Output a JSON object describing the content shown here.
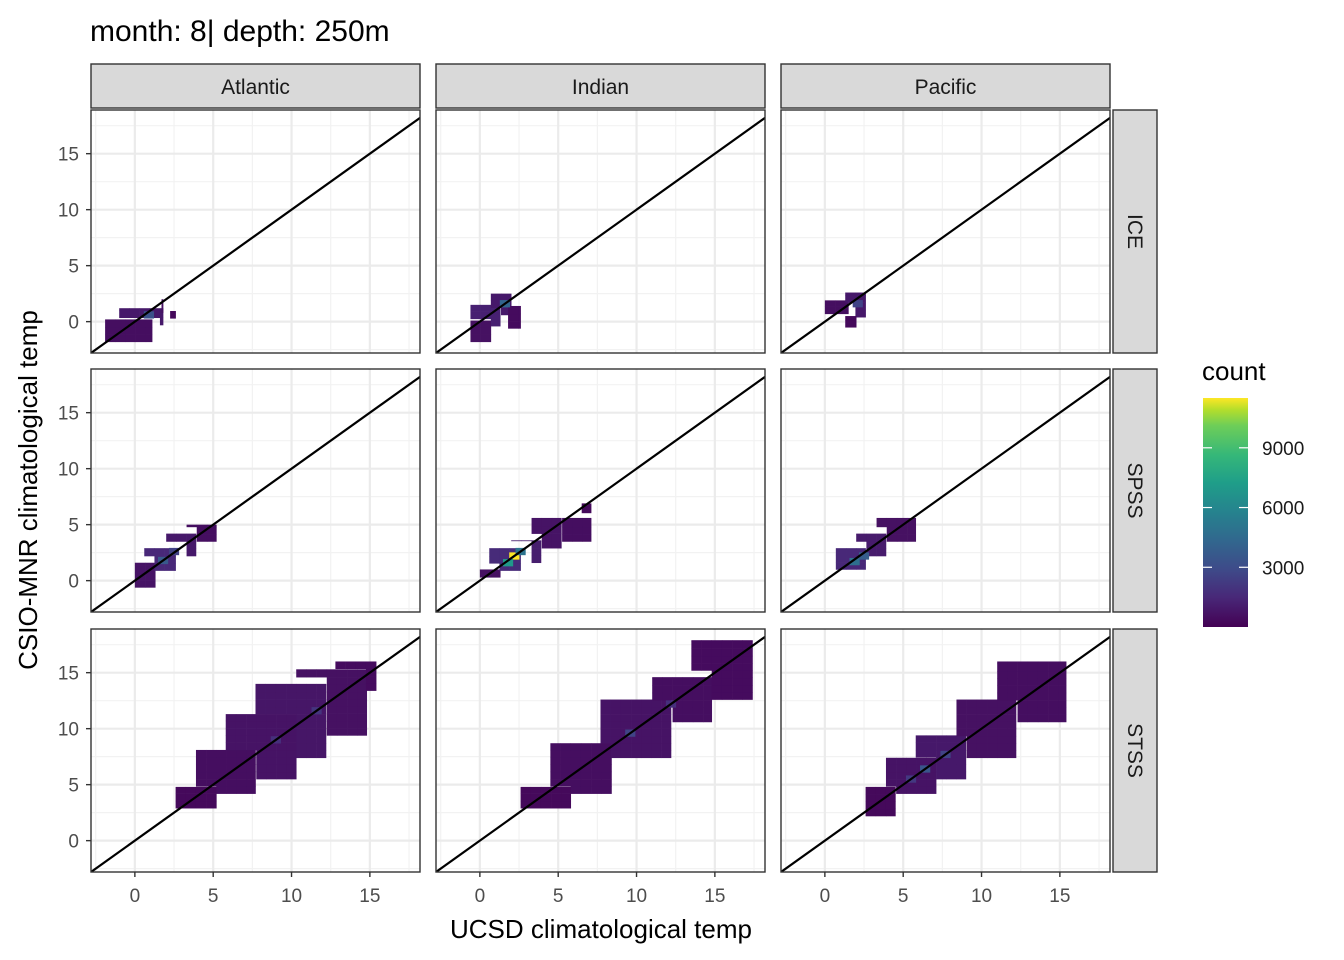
{
  "chart_data": {
    "type": "heatmap",
    "title": "month: 8| depth: 250m",
    "xlabel": "UCSD climatological temp",
    "ylabel": "CSIO-MNR climatological temp",
    "xlim": [
      -2.8,
      18.2
    ],
    "ylim": [
      -2.8,
      18.9
    ],
    "x_ticks": [
      0,
      5,
      10,
      15
    ],
    "y_ticks": [
      0,
      5,
      10,
      15
    ],
    "tick_labels_x": [
      "0",
      "5",
      "10",
      "15"
    ],
    "tick_labels_y": [
      "0",
      "5",
      "10",
      "15"
    ],
    "grid": true,
    "reference_line": "y = x",
    "columns": [
      "Atlantic",
      "Indian",
      "Pacific"
    ],
    "rows": [
      "ICE",
      "SPSS",
      "STSS"
    ],
    "bin_width": 0.65,
    "legend": {
      "title": "count",
      "placement": "right",
      "colormap": "viridis",
      "min": 1,
      "max": 11500,
      "ticks": [
        3000,
        6000,
        9000
      ],
      "tick_labels": [
        "3000",
        "6000",
        "9000"
      ],
      "low_color": "#440154",
      "high_color": "#fde725"
    },
    "panels": [
      {
        "column": "Atlantic",
        "row": "ICE",
        "regions": [
          {
            "x": [
              -1.9,
              1.1
            ],
            "y": [
              -1.8,
              0.2
            ],
            "count": 500
          },
          {
            "x": [
              -1.0,
              1.8
            ],
            "y": [
              -0.3,
              1.2
            ],
            "count": 900
          },
          {
            "x": [
              0.4,
              1.8
            ],
            "y": [
              0.8,
              2.0
            ],
            "count": 600
          },
          {
            "x": [
              1.6,
              2.6
            ],
            "y": [
              0.3,
              1.0
            ],
            "count": 300
          }
        ],
        "hotspots": [
          {
            "x": 0.9,
            "y": 0.6,
            "count": 3200
          }
        ]
      },
      {
        "column": "Indian",
        "row": "ICE",
        "regions": [
          {
            "x": [
              -0.6,
              0.7
            ],
            "y": [
              -1.8,
              0.1
            ],
            "count": 600
          },
          {
            "x": [
              -0.6,
              1.3
            ],
            "y": [
              -0.4,
              1.5
            ],
            "count": 1200
          },
          {
            "x": [
              0.7,
              2.0
            ],
            "y": [
              0.6,
              2.5
            ],
            "count": 900
          },
          {
            "x": [
              1.8,
              2.6
            ],
            "y": [
              -0.6,
              1.4
            ],
            "count": 400
          }
        ],
        "hotspots": [
          {
            "x": 1.6,
            "y": 1.6,
            "count": 4200
          }
        ]
      },
      {
        "column": "Pacific",
        "row": "ICE",
        "regions": [
          {
            "x": [
              0.0,
              1.5
            ],
            "y": [
              0.7,
              1.9
            ],
            "count": 500
          },
          {
            "x": [
              1.3,
              2.6
            ],
            "y": [
              0.4,
              2.6
            ],
            "count": 900
          },
          {
            "x": [
              1.3,
              2.0
            ],
            "y": [
              -0.5,
              0.5
            ],
            "count": 300
          }
        ],
        "hotspots": [
          {
            "x": 2.1,
            "y": 1.6,
            "count": 2600
          }
        ]
      },
      {
        "column": "Atlantic",
        "row": "SPSS",
        "regions": [
          {
            "x": [
              0.0,
              1.3
            ],
            "y": [
              -0.6,
              1.6
            ],
            "count": 700
          },
          {
            "x": [
              0.6,
              2.6
            ],
            "y": [
              0.9,
              2.9
            ],
            "count": 1500
          },
          {
            "x": [
              2.0,
              3.9
            ],
            "y": [
              2.2,
              4.2
            ],
            "count": 900
          },
          {
            "x": [
              3.3,
              5.2
            ],
            "y": [
              3.5,
              5.0
            ],
            "count": 500
          }
        ],
        "hotspots": [
          {
            "x": 1.8,
            "y": 1.8,
            "count": 3600
          },
          {
            "x": 2.5,
            "y": 2.6,
            "count": 2500
          }
        ]
      },
      {
        "column": "Indian",
        "row": "SPSS",
        "regions": [
          {
            "x": [
              0.0,
              1.3
            ],
            "y": [
              0.3,
              1.0
            ],
            "count": 600
          },
          {
            "x": [
              0.6,
              2.6
            ],
            "y": [
              0.9,
              2.9
            ],
            "count": 1600
          },
          {
            "x": [
              2.0,
              3.9
            ],
            "y": [
              1.6,
              3.6
            ],
            "count": 1100
          },
          {
            "x": [
              3.3,
              5.2
            ],
            "y": [
              2.9,
              5.6
            ],
            "count": 700
          },
          {
            "x": [
              4.6,
              7.1
            ],
            "y": [
              3.5,
              5.6
            ],
            "count": 500
          },
          {
            "x": [
              6.5,
              7.1
            ],
            "y": [
              5.4,
              6.9
            ],
            "count": 300
          }
        ],
        "hotspots": [
          {
            "x": 2.2,
            "y": 2.2,
            "count": 11500
          },
          {
            "x": 1.8,
            "y": 1.6,
            "count": 7000
          },
          {
            "x": 2.6,
            "y": 2.6,
            "count": 5000
          }
        ]
      },
      {
        "column": "Pacific",
        "row": "SPSS",
        "regions": [
          {
            "x": [
              0.7,
              2.6
            ],
            "y": [
              1.0,
              2.9
            ],
            "count": 1500
          },
          {
            "x": [
              2.0,
              3.9
            ],
            "y": [
              2.2,
              4.2
            ],
            "count": 1000
          },
          {
            "x": [
              3.3,
              5.8
            ],
            "y": [
              3.5,
              5.6
            ],
            "count": 600
          }
        ],
        "hotspots": [
          {
            "x": 1.9,
            "y": 1.7,
            "count": 4800
          },
          {
            "x": 2.5,
            "y": 2.2,
            "count": 3800
          }
        ]
      },
      {
        "column": "Atlantic",
        "row": "STSS",
        "regions": [
          {
            "x": [
              2.6,
              5.2
            ],
            "y": [
              2.9,
              4.8
            ],
            "count": 300
          },
          {
            "x": [
              3.9,
              7.7
            ],
            "y": [
              4.2,
              8.1
            ],
            "count": 500
          },
          {
            "x": [
              5.8,
              10.3
            ],
            "y": [
              5.5,
              11.3
            ],
            "count": 700
          },
          {
            "x": [
              7.7,
              12.2
            ],
            "y": [
              7.4,
              14.0
            ],
            "count": 800
          },
          {
            "x": [
              10.3,
              14.8
            ],
            "y": [
              9.4,
              15.3
            ],
            "count": 600
          },
          {
            "x": [
              12.8,
              15.4
            ],
            "y": [
              13.4,
              16.0
            ],
            "count": 400
          }
        ],
        "hotspots": [
          {
            "x": 9.0,
            "y": 9.0,
            "count": 1800
          },
          {
            "x": 11.6,
            "y": 11.6,
            "count": 2000
          }
        ]
      },
      {
        "column": "Indian",
        "row": "STSS",
        "regions": [
          {
            "x": [
              2.6,
              5.8
            ],
            "y": [
              2.9,
              4.8
            ],
            "count": 300
          },
          {
            "x": [
              4.5,
              8.4
            ],
            "y": [
              4.2,
              8.7
            ],
            "count": 500
          },
          {
            "x": [
              7.7,
              12.2
            ],
            "y": [
              7.4,
              12.6
            ],
            "count": 700
          },
          {
            "x": [
              11.0,
              14.8
            ],
            "y": [
              10.6,
              14.6
            ],
            "count": 500
          },
          {
            "x": [
              13.5,
              17.4
            ],
            "y": [
              12.6,
              17.9
            ],
            "count": 400
          }
        ],
        "hotspots": [
          {
            "x": 9.6,
            "y": 9.6,
            "count": 2600
          },
          {
            "x": 12.2,
            "y": 12.2,
            "count": 1800
          }
        ]
      },
      {
        "column": "Pacific",
        "row": "STSS",
        "regions": [
          {
            "x": [
              2.6,
              4.5
            ],
            "y": [
              2.2,
              4.8
            ],
            "count": 300
          },
          {
            "x": [
              3.9,
              7.1
            ],
            "y": [
              4.2,
              7.4
            ],
            "count": 700
          },
          {
            "x": [
              5.8,
              9.0
            ],
            "y": [
              5.5,
              9.4
            ],
            "count": 900
          },
          {
            "x": [
              8.4,
              12.2
            ],
            "y": [
              7.4,
              12.6
            ],
            "count": 600
          },
          {
            "x": [
              11.0,
              15.4
            ],
            "y": [
              10.6,
              16.0
            ],
            "count": 500
          }
        ],
        "hotspots": [
          {
            "x": 6.4,
            "y": 6.4,
            "count": 3400
          },
          {
            "x": 7.7,
            "y": 7.7,
            "count": 2600
          },
          {
            "x": 5.5,
            "y": 5.5,
            "count": 2200
          }
        ]
      }
    ]
  }
}
